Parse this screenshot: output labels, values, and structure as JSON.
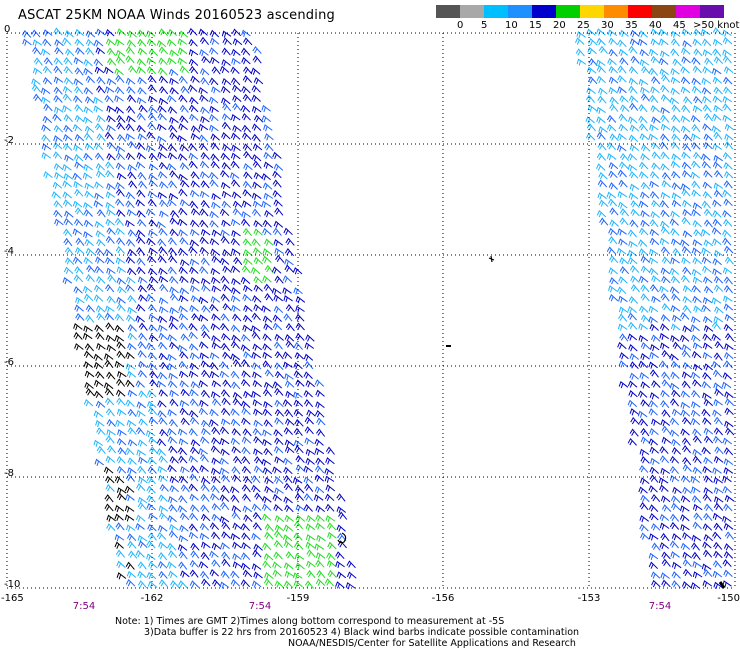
{
  "title": "ASCAT 25KM NOAA Winds 20160523 ascending",
  "speed_scale": {
    "labels": [
      "0",
      "5",
      "10",
      "15",
      "20",
      "25",
      "30",
      "35",
      "40",
      "45",
      ">50 knots"
    ],
    "colors": [
      "#555555",
      "#a8a8a8",
      "#00bfff",
      "#1e90ff",
      "#0000cd",
      "#00d000",
      "#ffd700",
      "#ff8c00",
      "#ff0000",
      "#8b4513",
      "#e000e0",
      "#6a0dad"
    ]
  },
  "map": {
    "lon_labels": [
      "-165",
      "-162",
      "-159",
      "-156",
      "-153",
      "-150"
    ],
    "lat_labels": [
      "0",
      "-2",
      "-4",
      "-6",
      "-8",
      "-10"
    ],
    "time_labels": [
      "7:54",
      "7:54",
      "7:54"
    ],
    "barb_colors": {
      "dark_blue": "#0000c8",
      "mid_blue": "#1e64ff",
      "light_blue": "#1eb4ff",
      "green": "#22dd22",
      "black": "#000000"
    }
  },
  "footer": {
    "line1": "Note: 1) Times are GMT 2)Times along bottom correspond to measurement at -5S",
    "line2": "3)Data buffer is 22 hrs from 20160523 4) Black wind barbs indicate possible contamination",
    "line3": "NOAA/NESDIS/Center for Satellite Applications and Research"
  }
}
